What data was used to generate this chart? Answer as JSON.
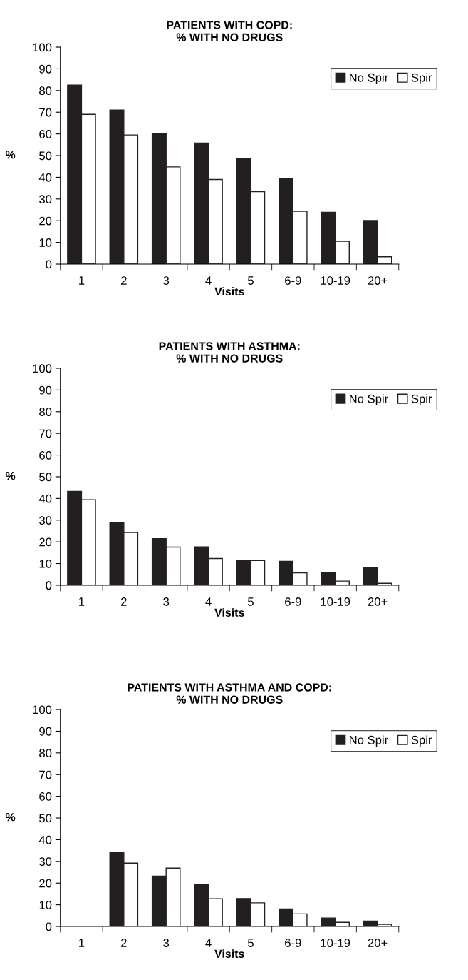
{
  "chart_data": [
    {
      "type": "bar",
      "title": "PATIENTS WITH COPD:\n% WITH NO DRUGS",
      "xlabel": "Visits",
      "ylabel": "%",
      "categories": [
        "1",
        "2",
        "3",
        "4",
        "5",
        "6-9",
        "10-19",
        "20+"
      ],
      "series": [
        {
          "name": "No Spir",
          "color": "#231f20",
          "values": [
            82.5,
            71,
            60,
            55.8,
            48.6,
            39.6,
            23.9,
            20.1
          ]
        },
        {
          "name": "Spir",
          "color": "#ffffff",
          "values": [
            69,
            59.5,
            44.8,
            39,
            33.4,
            24.3,
            10.5,
            3.4
          ]
        }
      ],
      "ylim": [
        0,
        100
      ],
      "yticks": [
        0,
        10,
        20,
        30,
        40,
        50,
        60,
        70,
        80,
        90,
        100
      ],
      "legend": "top right",
      "grid": false
    },
    {
      "type": "bar",
      "title": "PATIENTS WITH ASTHMA:\n% WITH NO DRUGS",
      "xlabel": "Visits",
      "ylabel": "%",
      "categories": [
        "1",
        "2",
        "3",
        "4",
        "5",
        "6-9",
        "10-19",
        "20+"
      ],
      "series": [
        {
          "name": "No Spir",
          "color": "#231f20",
          "values": [
            43.3,
            28.7,
            21.5,
            17.7,
            11.4,
            11,
            5.8,
            8.1
          ]
        },
        {
          "name": "Spir",
          "color": "#ffffff",
          "values": [
            39.4,
            24.3,
            17.6,
            12.3,
            11.4,
            5.7,
            1.9,
            0.9
          ]
        }
      ],
      "ylim": [
        0,
        100
      ],
      "yticks": [
        0,
        10,
        20,
        30,
        40,
        50,
        60,
        70,
        80,
        90,
        100
      ],
      "legend": "top right",
      "grid": false
    },
    {
      "type": "bar",
      "title": "PATIENTS WITH ASTHMA AND COPD:\n% WITH NO DRUGS",
      "xlabel": "Visits",
      "ylabel": "%",
      "categories": [
        "1",
        "2",
        "3",
        "4",
        "5",
        "6-9",
        "10-19",
        "20+"
      ],
      "series": [
        {
          "name": "No Spir",
          "color": "#231f20",
          "values": [
            null,
            34,
            23.2,
            19.5,
            12.9,
            8.1,
            3.9,
            2.5
          ]
        },
        {
          "name": "Spir",
          "color": "#ffffff",
          "values": [
            null,
            29.2,
            26.9,
            12.8,
            10.9,
            5.8,
            1.9,
            1
          ]
        }
      ],
      "ylim": [
        0,
        100
      ],
      "yticks": [
        0,
        10,
        20,
        30,
        40,
        50,
        60,
        70,
        80,
        90,
        100
      ],
      "legend": "top right",
      "grid": false
    }
  ]
}
